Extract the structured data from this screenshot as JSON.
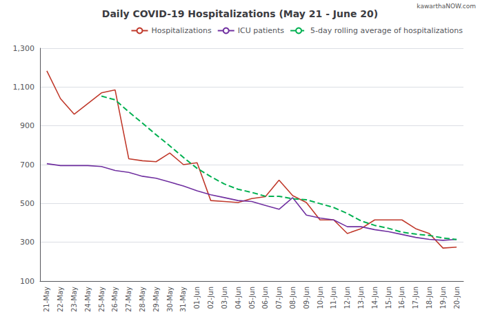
{
  "chart_data": {
    "type": "line",
    "title": "Daily COVID-19 Hospitalizations (May 21 - June 20)",
    "annotations": [
      "kawarthaNOW.com"
    ],
    "categories": [
      "21-May",
      "22-May",
      "23-May",
      "24-May",
      "25-May",
      "26-May",
      "27-May",
      "28-May",
      "29-May",
      "30-May",
      "31-May",
      "01-Jun",
      "02-Jun",
      "03-Jun",
      "04-Jun",
      "05-Jun",
      "06-Jun",
      "07-Jun",
      "08-Jun",
      "09-Jun",
      "10-Jun",
      "11-Jun",
      "12-Jun",
      "13-Jun",
      "14-Jun",
      "15-Jun",
      "16-Jun",
      "17-Jun",
      "18-Jun",
      "19-Jun",
      "20-Jun"
    ],
    "series": [
      {
        "name": "Hospitalizations",
        "color": "#c0392b",
        "line_style": "solid",
        "values": [
          1183,
          1040,
          960,
          1015,
          1070,
          1085,
          730,
          720,
          715,
          760,
          700,
          710,
          515,
          510,
          505,
          525,
          535,
          620,
          540,
          505,
          415,
          415,
          345,
          370,
          415,
          415,
          415,
          370,
          345,
          270,
          275
        ]
      },
      {
        "name": "ICU patients",
        "color": "#7030a0",
        "line_style": "solid",
        "values": [
          705,
          695,
          695,
          695,
          690,
          670,
          660,
          640,
          630,
          610,
          590,
          565,
          545,
          530,
          515,
          510,
          490,
          470,
          530,
          440,
          425,
          415,
          380,
          380,
          365,
          355,
          340,
          325,
          315,
          310,
          315
        ]
      },
      {
        "name": "5-day rolling average of hospitalizations",
        "color": "#00b050",
        "line_style": "dashed",
        "values": [
          null,
          null,
          null,
          null,
          1053,
          1034,
          972,
          914,
          854,
          797,
          737,
          681,
          638,
          600,
          573,
          557,
          537,
          537,
          524,
          519,
          499,
          479,
          448,
          410,
          387,
          372,
          352,
          342,
          335,
          322,
          314
        ]
      }
    ],
    "marker": "none",
    "ylim": [
      100,
      1300
    ],
    "yticks": [
      100,
      300,
      500,
      700,
      900,
      {
        "value": 1100,
        "label": "1,100"
      },
      {
        "value": 1300,
        "label": "1,300"
      }
    ],
    "grid": true,
    "legend": "upper right"
  }
}
